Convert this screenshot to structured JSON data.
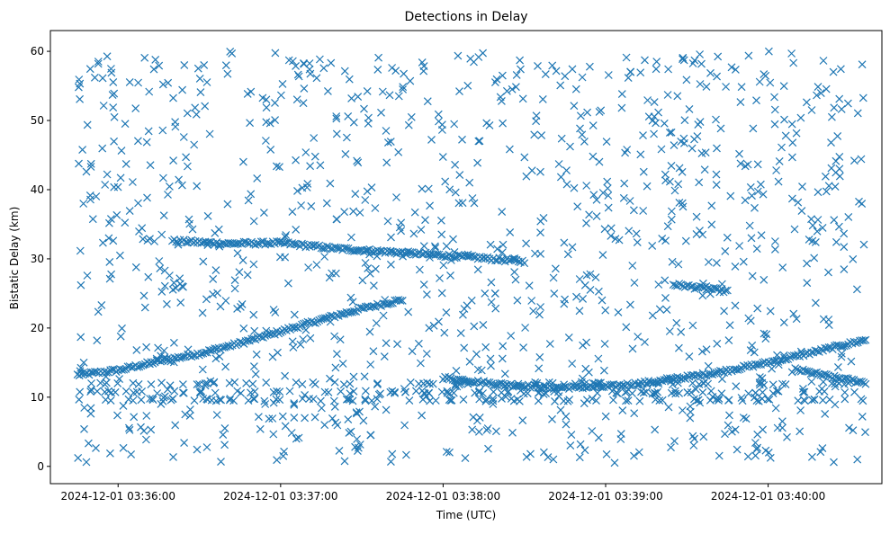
{
  "chart_data": {
    "type": "scatter",
    "title": "Detections in Delay",
    "xlabel": "Time (UTC)",
    "ylabel": "Bistatic Delay (km)",
    "marker": "x",
    "color": "#1f77b4",
    "grid": false,
    "xlim": [
      "2024-12-01 03:35:35",
      "2024-12-01 03:40:42"
    ],
    "ylim": [
      -2.5,
      63
    ],
    "xticks": [
      {
        "value": "2024-12-01 03:36:00",
        "label": "2024-12-01 03:36:00"
      },
      {
        "value": "2024-12-01 03:37:00",
        "label": "2024-12-01 03:37:00"
      },
      {
        "value": "2024-12-01 03:38:00",
        "label": "2024-12-01 03:38:00"
      },
      {
        "value": "2024-12-01 03:39:00",
        "label": "2024-12-01 03:39:00"
      },
      {
        "value": "2024-12-01 03:40:00",
        "label": "2024-12-01 03:40:00"
      }
    ],
    "yticks": [
      0,
      10,
      20,
      30,
      40,
      50,
      60
    ],
    "series": [
      {
        "description": "track rising from ~13 km to ~24 km",
        "x": [
          "2024-12-01 03:35:45",
          "2024-12-01 03:36:00",
          "2024-12-01 03:36:15",
          "2024-12-01 03:36:30",
          "2024-12-01 03:36:45",
          "2024-12-01 03:37:00",
          "2024-12-01 03:37:15",
          "2024-12-01 03:37:30",
          "2024-12-01 03:37:45"
        ],
        "y": [
          13.2,
          13.9,
          15.2,
          16.3,
          17.8,
          19.5,
          21.2,
          22.8,
          24.1
        ]
      },
      {
        "description": "track descending from ~33 km to ~29.5 km",
        "x": [
          "2024-12-01 03:36:20",
          "2024-12-01 03:36:40",
          "2024-12-01 03:37:00",
          "2024-12-01 03:37:20",
          "2024-12-01 03:37:40",
          "2024-12-01 03:38:00",
          "2024-12-01 03:38:15",
          "2024-12-01 03:38:30"
        ],
        "y": [
          32.6,
          32.2,
          32.3,
          31.5,
          31.0,
          30.5,
          30.1,
          29.6
        ]
      },
      {
        "description": "track curving from ~13 km down to ~11.5 km and back up to ~18 km",
        "x": [
          "2024-12-01 03:38:00",
          "2024-12-01 03:38:20",
          "2024-12-01 03:38:40",
          "2024-12-01 03:39:00",
          "2024-12-01 03:39:20",
          "2024-12-01 03:39:40",
          "2024-12-01 03:40:00",
          "2024-12-01 03:40:20",
          "2024-12-01 03:40:36"
        ],
        "y": [
          12.8,
          11.9,
          11.4,
          11.5,
          12.3,
          13.5,
          15.0,
          16.8,
          18.3
        ]
      },
      {
        "description": "short track near 26 km",
        "x": [
          "2024-12-01 03:39:25",
          "2024-12-01 03:39:35",
          "2024-12-01 03:39:45"
        ],
        "y": [
          26.3,
          25.8,
          25.3
        ]
      },
      {
        "description": "track descending from ~14 km to ~12 km",
        "x": [
          "2024-12-01 03:40:10",
          "2024-12-01 03:40:25",
          "2024-12-01 03:40:36"
        ],
        "y": [
          14.0,
          12.8,
          12.1
        ]
      },
      {
        "description": "background clutter detections spread over 0–60 km across the full time span",
        "x_range": [
          "2024-12-01 03:35:45",
          "2024-12-01 03:40:36"
        ],
        "y_range": [
          0.5,
          60
        ]
      }
    ]
  }
}
